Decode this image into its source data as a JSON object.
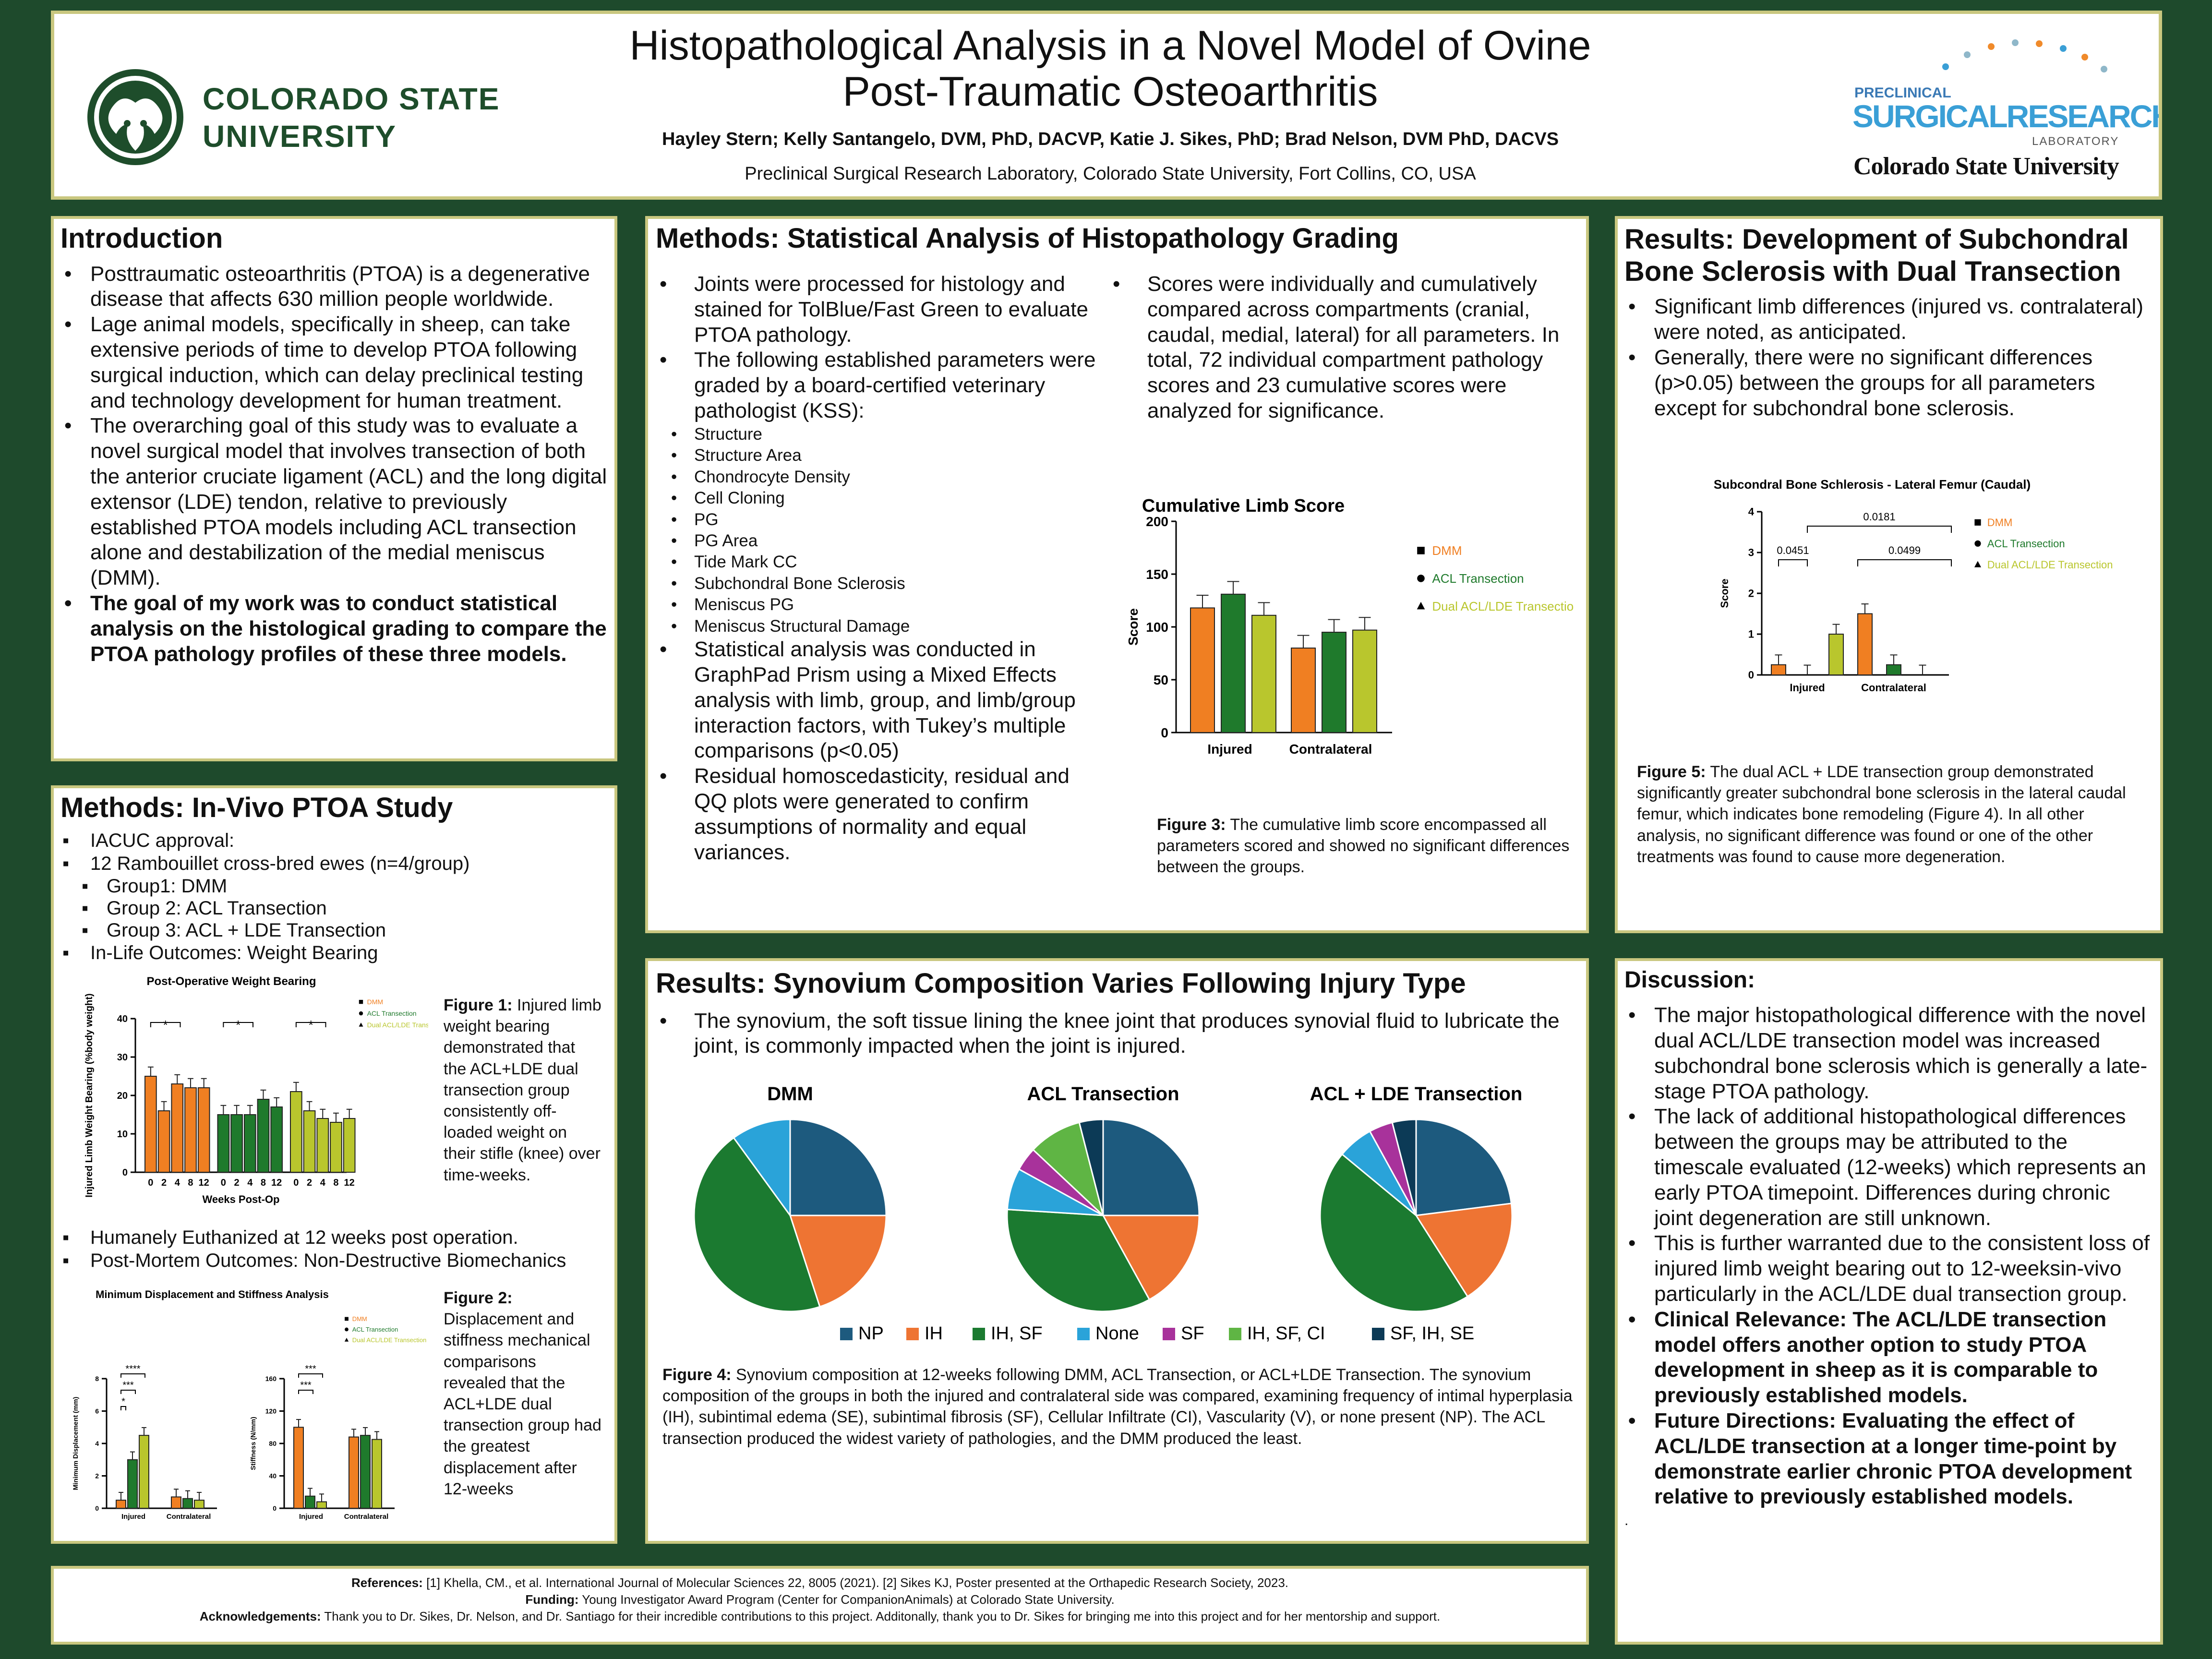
{
  "header": {
    "title_line1": "Histopathological Analysis in a Novel Model of Ovine",
    "title_line2": "Post-Traumatic Osteoarthritis",
    "authors": "Hayley Stern; Kelly Santangelo, DVM, PhD, DACVP, Katie J. Sikes, PhD; Brad Nelson, DVM PhD, DACVS",
    "affiliation": "Preclinical Surgical Research Laboratory, Colorado State University, Fort Collins, CO, USA",
    "csu_logo_line1": "COLORADO STATE",
    "csu_logo_line2": "UNIVERSITY",
    "psrl_line1": "PRECLINICAL",
    "psrl_line2": "SURGICALRESEARCH",
    "psrl_line3": "LABORATORY",
    "psrl_line4": "Colorado State University"
  },
  "intro": {
    "title": "Introduction",
    "items": [
      "Posttraumatic osteoarthritis (PTOA) is a degenerative disease that affects 630 million people worldwide.",
      "Lage animal models, specifically in sheep, can take extensive periods of time to develop PTOA following surgical induction, which can delay preclinical testing and technology development for human treatment.",
      "The overarching goal of this study was to evaluate a novel surgical model that involves transection of both the anterior cruciate ligament (ACL) and the long digital extensor (LDE) tendon, relative to previously established PTOA models including ACL transection alone and destabilization of the medial meniscus (DMM).",
      "The goal of my work was to conduct statistical analysis on the histological grading to compare the PTOA pathology profiles of these three models."
    ]
  },
  "invivo": {
    "title": "Methods: In-Vivo PTOA Study",
    "items": [
      "IACUC approval:",
      "12 Rambouillet cross-bred ewes (n=4/group)"
    ],
    "groups": [
      "Group1: DMM",
      "Group 2: ACL Transection",
      "Group 3: ACL + LDE Transection"
    ],
    "items2": [
      "In-Life Outcomes: Weight Bearing"
    ],
    "items3": [
      "Humanely Euthanized at 12 weeks post operation.",
      "Post-Mortem Outcomes: Non-Destructive Biomechanics"
    ],
    "fig1_label": "Figure 1:",
    "fig1_text": " Injured limb weight bearing demonstrated that the ACL+LDE dual transection group consistently off-loaded weight on their stifle (knee) over time-weeks.",
    "fig2_label": "Figure 2:",
    "fig2_text": " Displacement and stiffness mechanical comparisons revealed that the ACL+LDE dual transection group had the greatest displacement after 12-weeks"
  },
  "stats": {
    "title": "Methods: Statistical Analysis of Histopathology Grading",
    "col1": [
      "Joints were processed for histology and stained for TolBlue/Fast Green to evaluate PTOA pathology.",
      "The following established parameters were graded by a board-certified veterinary pathologist (KSS):"
    ],
    "params": [
      "Structure",
      "Structure Area",
      "Chondrocyte Density",
      "Cell Cloning",
      "PG",
      "PG Area",
      "Tide Mark CC",
      "Subchondral Bone Sclerosis",
      "Meniscus PG",
      "Meniscus Structural Damage"
    ],
    "col1b": [
      "Statistical analysis was conducted in GraphPad Prism using a Mixed Effects analysis with limb, group, and limb/group interaction factors, with Tukey’s multiple comparisons (p<0.05)",
      "Residual homoscedasticity, residual and QQ plots were generated to confirm assumptions of normality and equal variances."
    ],
    "col2": [
      "Scores were individually and cumulatively compared across compartments (cranial, caudal, medial, lateral) for all parameters. In total, 72 individual compartment pathology scores and 23 cumulative scores were analyzed for significance."
    ],
    "fig3_label": "Figure 3:",
    "fig3_text": " The cumulative limb score encompassed all parameters scored and showed no significant differences between the groups."
  },
  "sclerosis": {
    "title": "Results: Development of Subchondral Bone Sclerosis with Dual Transection",
    "items": [
      "Significant limb differences (injured vs. contralateral) were noted, as anticipated.",
      "Generally, there were no significant differences (p>0.05) between the groups for all parameters except for subchondral bone sclerosis."
    ],
    "fig5_label": "Figure 5:",
    "fig5_text": "  The dual ACL + LDE transection group demonstrated significantly greater subchondral bone sclerosis in the lateral caudal femur, which indicates bone remodeling (Figure 4). In all other analysis, no significant difference was found or one of the other treatments was found to cause more degeneration."
  },
  "synovium": {
    "title": "Results: Synovium Composition Varies Following Injury Type",
    "items": [
      "The synovium, the soft tissue lining the knee joint that produces synovial fluid to lubricate the joint, is commonly impacted when the joint is injured."
    ],
    "fig4_label": "Figure 4:",
    "fig4_text": " Synovium composition at 12-weeks following DMM, ACL Transection, or ACL+LDE Transection. The synovium composition of the groups in both the injured and contralateral side was compared, examining frequency of intimal hyperplasia (IH), subintimal edema (SE), subintimal fibrosis (SF), Cellular Infiltrate (CI), Vascularity (V), or none present (NP). The ACL transection produced the widest variety of pathologies, and the DMM produced the least."
  },
  "discussion": {
    "title": "Discussion:",
    "items": [
      "The major histopathological difference with the novel dual ACL/LDE transection model was increased subchondral bone sclerosis which is generally a late-stage PTOA pathology.",
      "The lack of additional histopathological differences between the groups may be attributed to the timescale evaluated (12-weeks) which represents an early PTOA timepoint. Differences during chronic joint degeneration are still unknown.",
      "This is further warranted due to the consistent loss of injured limb weight bearing out to 12-weeksin-vivo particularly in the ACL/LDE dual transection group."
    ],
    "bold_items": [
      "Clinical Relevance: The ACL/LDE transection model offers another option to study PTOA development in sheep as it is comparable to previously established models.",
      "Future Directions: Evaluating the effect of ACL/LDE transection at a longer time-point by demonstrate earlier chronic PTOA development relative to previously established models."
    ],
    "trailing": "."
  },
  "footer": {
    "ref_label": "References:",
    "ref_text": " [1] Khella, CM., et al. International Journal of Molecular Sciences 22, 8005 (2021). [2] Sikes KJ, Poster presented at the Orthapedic Research Society, 2023.",
    "fund_label": "Funding:",
    "fund_text": " Young Investigator Award Program (Center for CompanionAnimals) at Colorado State University.",
    "ack_label": "Acknowledgements:",
    "ack_text": " Thank you to Dr. Sikes, Dr. Nelson, and Dr. Santiago for their incredible contributions to this project. Additonally, thank you to Dr. Sikes for bringing me into this project and for her mentorship and support."
  },
  "colors": {
    "dmm": "#f07f22",
    "acl": "#1f7a2c",
    "dual": "#b9c62d",
    "np": "#1d5a7e",
    "ih": "#ee7433",
    "ihsf": "#1b7a30",
    "none": "#2aa3d9",
    "sf": "#a8329b",
    "ihsfci": "#5fb544",
    "sfihse": "#0c3a56"
  },
  "chart_data": [
    {
      "type": "bar",
      "title": "Post-Operative Weight Bearing",
      "ylabel": "Injured Limb Weight Bearing (%body weight)",
      "xlabel": "Weeks Post-Op",
      "ylim": [
        0,
        40
      ],
      "yticks": [
        0,
        10,
        20,
        30,
        40
      ],
      "categories": [
        "0",
        "2",
        "4",
        "8",
        "12"
      ],
      "series": [
        {
          "name": "DMM",
          "values": [
            25,
            16,
            23,
            22,
            22
          ]
        },
        {
          "name": "ACL Transection",
          "values": [
            15,
            15,
            15,
            19,
            17
          ]
        },
        {
          "name": "Dual ACL/LDE Transection",
          "values": [
            21,
            16,
            14,
            13,
            14
          ]
        }
      ],
      "annotations": [
        "*",
        "*",
        "*"
      ]
    },
    {
      "type": "bar",
      "title": "Minimum Displacement and Stiffness Analysis",
      "ylabel": "Minimum Displacement (mm)",
      "ylim": [
        0,
        8
      ],
      "yticks": [
        0,
        2,
        4,
        6,
        8
      ],
      "categories": [
        "Injured",
        "Contralateral"
      ],
      "series": [
        {
          "name": "DMM",
          "values": [
            0.5,
            0.7
          ]
        },
        {
          "name": "ACL Transection",
          "values": [
            3.0,
            0.6
          ]
        },
        {
          "name": "Dual ACL/LDE Transection",
          "values": [
            4.5,
            0.5
          ]
        }
      ],
      "annotations": [
        "****",
        "***",
        "*"
      ]
    },
    {
      "type": "bar",
      "ylabel": "Stiffness (N/mm)",
      "ylim": [
        0,
        160
      ],
      "yticks": [
        0,
        40,
        80,
        120,
        160
      ],
      "categories": [
        "Injured",
        "Contralateral"
      ],
      "series": [
        {
          "name": "DMM",
          "values": [
            100,
            88
          ]
        },
        {
          "name": "ACL Transection",
          "values": [
            15,
            90
          ]
        },
        {
          "name": "Dual ACL/LDE Transection",
          "values": [
            8,
            85
          ]
        }
      ],
      "annotations": [
        "***",
        "***"
      ]
    },
    {
      "type": "bar",
      "title": "Cumulative Limb Score",
      "ylabel": "Score",
      "ylim": [
        0,
        200
      ],
      "yticks": [
        0,
        50,
        100,
        150,
        200
      ],
      "categories": [
        "Injured",
        "Contralateral"
      ],
      "series": [
        {
          "name": "DMM",
          "values": [
            118,
            80
          ]
        },
        {
          "name": "ACL Transection",
          "values": [
            131,
            95
          ]
        },
        {
          "name": "Dual ACL/LDE Transection",
          "values": [
            111,
            97
          ]
        }
      ]
    },
    {
      "type": "bar",
      "title": "Subcondral Bone Schlerosis - Lateral Femur (Caudal)",
      "ylabel": "Score",
      "ylim": [
        0,
        4
      ],
      "yticks": [
        0,
        1,
        2,
        3,
        4
      ],
      "categories": [
        "Injured",
        "Contralateral"
      ],
      "series": [
        {
          "name": "DMM",
          "values": [
            0.25,
            1.5
          ]
        },
        {
          "name": "ACL Transection",
          "values": [
            0,
            0.25
          ]
        },
        {
          "name": "Dual ACL/LDE Transection",
          "values": [
            1,
            0
          ]
        }
      ],
      "annotations": [
        "0.0181",
        "0.0451",
        "0.0499"
      ]
    },
    {
      "type": "pie",
      "title": "DMM",
      "labels": [
        "NP",
        "IH",
        "IH, SF",
        "None"
      ],
      "values": [
        25,
        20,
        45,
        10
      ]
    },
    {
      "type": "pie",
      "title": "ACL Transection",
      "labels": [
        "NP",
        "IH",
        "IH, SF",
        "None",
        "SF",
        "IH, SF, CI",
        "SF, IH, SE"
      ],
      "values": [
        25,
        17,
        34,
        7,
        4,
        9,
        4
      ]
    },
    {
      "type": "pie",
      "title": "ACL + LDE Transection",
      "labels": [
        "NP",
        "IH",
        "IH, SF",
        "None",
        "SF",
        "IH, SF, CI",
        "SF, IH, SE"
      ],
      "values": [
        23,
        18,
        45,
        6,
        4,
        0,
        4
      ]
    }
  ]
}
